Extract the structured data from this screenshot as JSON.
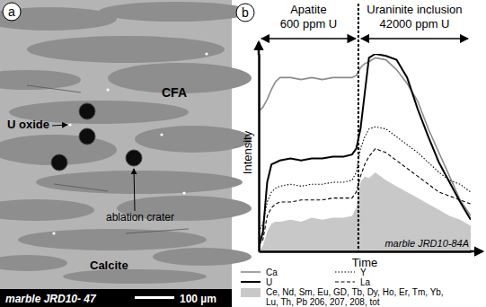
{
  "image_panel": {
    "panel_label": "a",
    "sample": "marble JRD10- 47",
    "scale_bar": "100 µm",
    "labels": {
      "oxide": "U oxide",
      "matrix": "CFA",
      "carbonate": "Calcite",
      "crater": "ablation crater"
    }
  },
  "chart_data": {
    "type": "line",
    "panel_label": "b",
    "x_label": "Time",
    "y_label": "Intensity",
    "sample": "marble JRD10-84A",
    "tick_labels": false,
    "xlim": [
      0,
      100
    ],
    "ylim": [
      0,
      100
    ],
    "xticks": [],
    "yticks": [],
    "boundary": 47,
    "regions": [
      {
        "label": "Apatite",
        "sublabel": "600 ppm U",
        "x": [
          0,
          47
        ]
      },
      {
        "label": "Uraninite inclusion",
        "sublabel": "42000 ppm U",
        "x": [
          47,
          100
        ]
      }
    ],
    "x": [
      0,
      2,
      4,
      6,
      8,
      10,
      15,
      20,
      25,
      30,
      35,
      40,
      44,
      46,
      48,
      50,
      52,
      55,
      60,
      65,
      70,
      75,
      80,
      85,
      90,
      95,
      100
    ],
    "series": [
      {
        "name": "Ca",
        "color": "#8c8c8c",
        "line_style": "solid",
        "values": [
          71,
          73,
          77,
          82,
          86,
          88,
          88,
          87,
          88,
          87,
          88,
          88,
          88,
          89,
          93,
          95,
          96,
          98,
          97,
          92,
          85,
          76,
          62,
          50,
          38,
          26,
          18
        ]
      },
      {
        "name": "U",
        "color": "#000000",
        "line_style": "solid",
        "values": [
          2,
          10,
          35,
          44,
          45,
          46,
          47,
          46,
          47,
          47,
          48,
          48,
          49,
          52,
          62,
          80,
          98,
          100,
          99,
          97,
          88,
          72,
          58,
          45,
          35,
          25,
          16
        ]
      },
      {
        "name": "Y",
        "color": "#000000",
        "line_style": "dotted",
        "values": [
          10,
          14,
          25,
          30,
          32,
          33,
          34,
          33,
          34,
          34,
          35,
          35,
          36,
          40,
          52,
          58,
          62,
          63,
          62,
          58,
          54,
          50,
          45,
          40,
          36,
          34,
          30
        ]
      },
      {
        "name": "La",
        "color": "#000000",
        "line_style": "dashed",
        "values": [
          3,
          6,
          18,
          22,
          24,
          25,
          25,
          26,
          26,
          26,
          27,
          27,
          27,
          30,
          38,
          44,
          48,
          52,
          50,
          46,
          42,
          38,
          34,
          30,
          28,
          26,
          24
        ]
      },
      {
        "name": "Ce, Nd, Sm, Eu, GD, Tb, Dy, Ho, Er, Tm, Yb, Lu, Th, Pb 206, 207, 208, tot",
        "type": "area",
        "color": "#c8c8c8",
        "values": [
          0,
          3,
          10,
          14,
          15,
          15,
          16,
          15,
          17,
          16,
          17,
          17,
          18,
          22,
          35,
          38,
          37,
          40,
          36,
          33,
          30,
          27,
          24,
          21,
          18,
          16,
          13
        ]
      }
    ]
  }
}
